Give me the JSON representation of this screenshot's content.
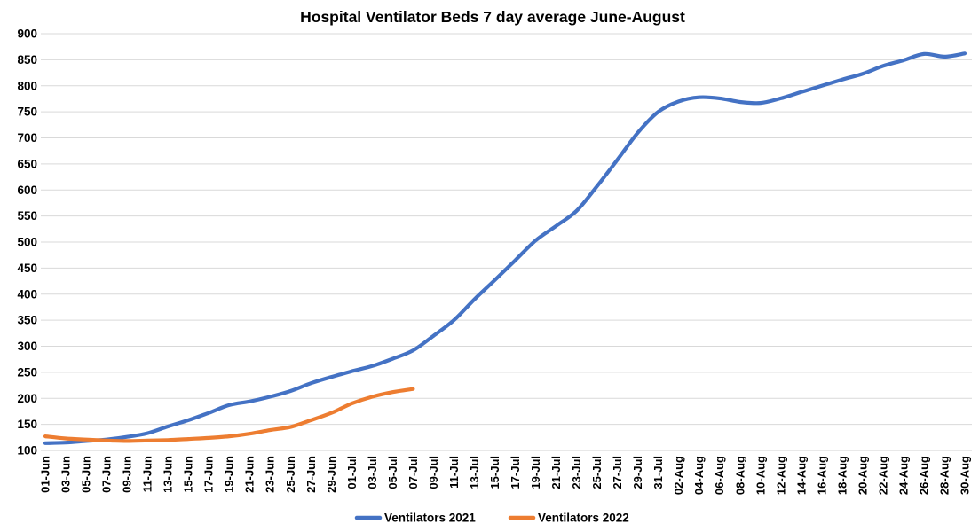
{
  "chart_data": {
    "type": "line",
    "title": "Hospital Ventilator Beds 7 day average June-August",
    "categories": [
      "01-Jun",
      "03-Jun",
      "05-Jun",
      "07-Jun",
      "09-Jun",
      "11-Jun",
      "13-Jun",
      "15-Jun",
      "17-Jun",
      "19-Jun",
      "21-Jun",
      "23-Jun",
      "25-Jun",
      "27-Jun",
      "29-Jun",
      "01-Jul",
      "03-Jul",
      "05-Jul",
      "07-Jul",
      "09-Jul",
      "11-Jul",
      "13-Jul",
      "15-Jul",
      "17-Jul",
      "19-Jul",
      "21-Jul",
      "23-Jul",
      "25-Jul",
      "27-Jul",
      "29-Jul",
      "31-Jul",
      "02-Aug",
      "04-Aug",
      "06-Aug",
      "08-Aug",
      "10-Aug",
      "12-Aug",
      "14-Aug",
      "16-Aug",
      "18-Aug",
      "20-Aug",
      "22-Aug",
      "24-Aug",
      "26-Aug",
      "28-Aug",
      "30-Aug"
    ],
    "series": [
      {
        "name": "Ventilators 2021",
        "color": "#4472C4",
        "values": [
          114,
          115,
          118,
          121,
          126,
          133,
          146,
          158,
          172,
          187,
          194,
          203,
          214,
          229,
          241,
          252,
          262,
          276,
          292,
          320,
          350,
          390,
          427,
          465,
          503,
          531,
          560,
          607,
          658,
          710,
          750,
          770,
          778,
          776,
          769,
          767,
          776,
          788,
          800,
          812,
          823,
          838,
          849,
          861,
          856,
          862
        ]
      },
      {
        "name": "Ventilators 2022",
        "color": "#ED7D31",
        "values": [
          127,
          123,
          121,
          119,
          118,
          119,
          120,
          122,
          124,
          127,
          132,
          139,
          145,
          158,
          172,
          190,
          203,
          212,
          218
        ]
      }
    ],
    "ylim": [
      100,
      900
    ],
    "ytick_step": 50,
    "yticks": [
      900,
      850,
      800,
      750,
      700,
      650,
      600,
      550,
      500,
      450,
      400,
      350,
      300,
      250,
      200,
      150,
      100
    ],
    "grid": "horizontal",
    "legend_position": "bottom",
    "x_label_rotation": -90,
    "line_style": "smooth"
  },
  "colors": {
    "gridline": "#D9D9D9",
    "axis_line": "#D0D0D0",
    "axis_text": "#000000",
    "background": "#FFFFFF"
  }
}
